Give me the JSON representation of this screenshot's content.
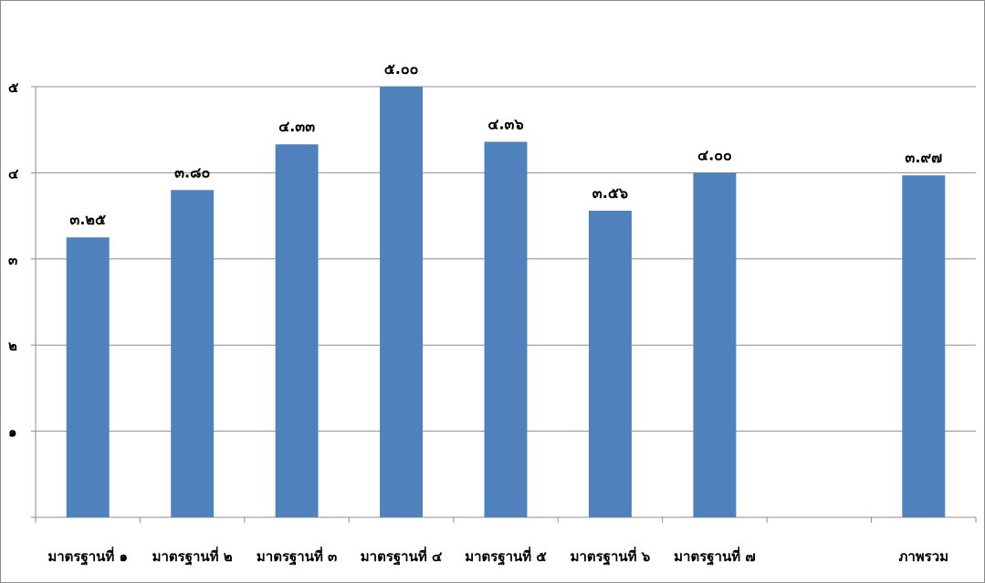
{
  "chart_data": {
    "type": "bar",
    "title": "",
    "xlabel": "",
    "ylabel": "",
    "ylim": [
      0,
      5
    ],
    "yticks": [
      0,
      1,
      2,
      3,
      4,
      5
    ],
    "ytick_labels": [
      "",
      "๑",
      "๒",
      "๓",
      "๔",
      "๕"
    ],
    "categories": [
      "มาตรฐานที่ ๑",
      "มาตรฐานที่ ๒",
      "มาตรฐานที่ ๓",
      "มาตรฐานที่ ๔",
      "มาตรฐานที่ ๕",
      "มาตรฐานที่ ๖",
      "มาตรฐานที่ ๗",
      "",
      "ภาพรวม"
    ],
    "values": [
      3.25,
      3.8,
      4.33,
      5.0,
      4.36,
      3.56,
      4.0,
      null,
      3.97
    ],
    "data_labels": [
      "๓.๒๕",
      "๓.๘๐",
      "๔.๓๓",
      "๕.๐๐",
      "๔.๓๖",
      "๓.๕๖",
      "๔.๐๐",
      "",
      "๓.๙๗"
    ],
    "grid": true,
    "legend": "none",
    "bar_color": "#4f81bd",
    "grid_color": "#8c8c8c"
  }
}
